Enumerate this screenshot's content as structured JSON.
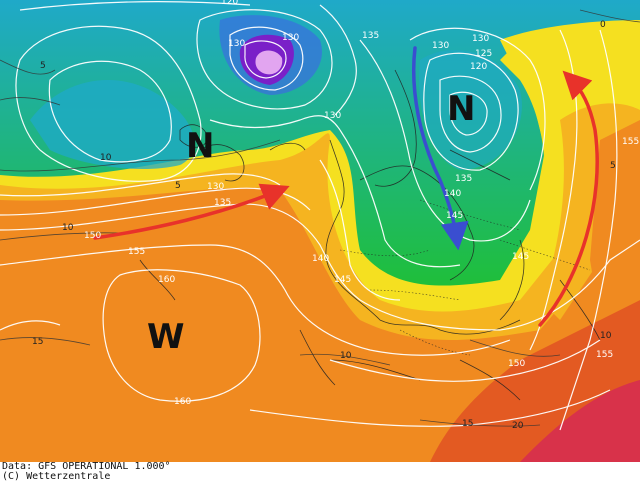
{
  "map": {
    "system_labels": [
      {
        "id": "n1",
        "text": "N"
      },
      {
        "id": "n2",
        "text": "N"
      },
      {
        "id": "w1",
        "text": "W"
      }
    ],
    "contour_labels": {
      "l120a": "120",
      "l130a": "130",
      "l130b": "130",
      "l135a": "135",
      "l130c": "130",
      "l130d": "130",
      "l125": "125",
      "l120b": "120",
      "l130e": "130",
      "l135b": "135",
      "l140a": "140",
      "l145a": "145",
      "l150a": "150",
      "l155a": "155",
      "l160a": "160",
      "l160b": "160",
      "l140b": "140",
      "l145b": "145",
      "l145c": "145",
      "l150b": "150",
      "l155b": "155",
      "l155c": "155",
      "l135c": "135",
      "l0a": "0",
      "l5a": "5",
      "l5b": "5",
      "l10a": "10",
      "l10b": "10",
      "l10c": "10",
      "l15a": "15",
      "l15b": "15",
      "l20a": "20",
      "l5c": "5",
      "l10d": "10"
    },
    "colors": {
      "cold_core": "#7a20c8",
      "cold": "#1fbf3a",
      "mild": "#f5e020",
      "warm": "#f08a20",
      "hot": "#e85a20",
      "arrow_warm": "#e8322a",
      "arrow_cold": "#3a4ed0"
    }
  },
  "footer": {
    "line1": "Data: GFS OPERATIONAL 1.000°",
    "line2": "(C) Wetterzentrale"
  }
}
